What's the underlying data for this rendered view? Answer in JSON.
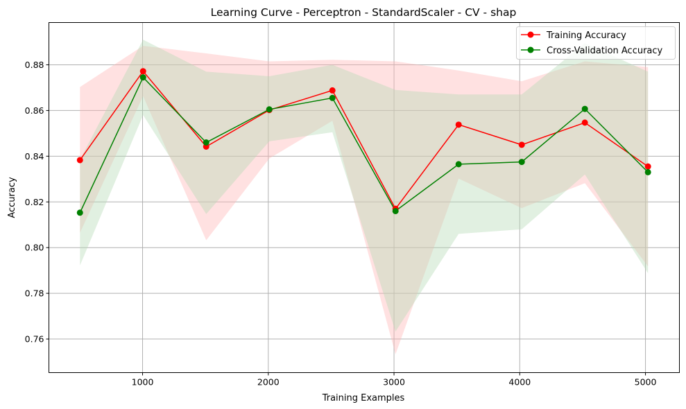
{
  "chart_data": {
    "type": "line",
    "title": "Learning Curve - Perceptron - StandardScaler - CV - shap",
    "xlabel": "Training Examples",
    "ylabel": "Accuracy",
    "xlim": [
      255,
      5270
    ],
    "ylim": [
      0.7453,
      0.8985
    ],
    "xticks": [
      1000,
      2000,
      3000,
      4000,
      5000
    ],
    "yticks": [
      0.76,
      0.78,
      0.8,
      0.82,
      0.84,
      0.86,
      0.88
    ],
    "ytick_labels": [
      "0.76",
      "0.78",
      "0.80",
      "0.82",
      "0.84",
      "0.86",
      "0.88"
    ],
    "grid": true,
    "legend_position": "top-right",
    "x": [
      502,
      1004,
      1506,
      2008,
      2510,
      3012,
      3514,
      4016,
      4518,
      5020
    ],
    "series": [
      {
        "name": "Training Accuracy",
        "color": "#ff0000",
        "band_color": "#ffb3b3",
        "marker": "circle",
        "values": [
          0.8383,
          0.8772,
          0.8442,
          0.8602,
          0.8688,
          0.817,
          0.8538,
          0.845,
          0.8547,
          0.8355
        ],
        "band_upper": [
          0.8703,
          0.8883,
          0.885,
          0.8815,
          0.8822,
          0.8815,
          0.8775,
          0.8728,
          0.8815,
          0.879
        ],
        "band_lower": [
          0.8065,
          0.8663,
          0.8032,
          0.839,
          0.8555,
          0.7533,
          0.8302,
          0.8173,
          0.8282,
          0.7918
        ]
      },
      {
        "name": "Cross-Validation Accuracy",
        "color": "#008000",
        "band_color": "#b3d9b3",
        "marker": "circle",
        "values": [
          0.8153,
          0.8745,
          0.846,
          0.8605,
          0.8655,
          0.816,
          0.8365,
          0.8375,
          0.8607,
          0.833
        ],
        "band_upper": [
          0.8385,
          0.891,
          0.877,
          0.875,
          0.88,
          0.869,
          0.867,
          0.867,
          0.8895,
          0.877
        ],
        "band_lower": [
          0.7922,
          0.858,
          0.8147,
          0.8465,
          0.8505,
          0.7633,
          0.806,
          0.808,
          0.832,
          0.7888
        ]
      }
    ]
  }
}
